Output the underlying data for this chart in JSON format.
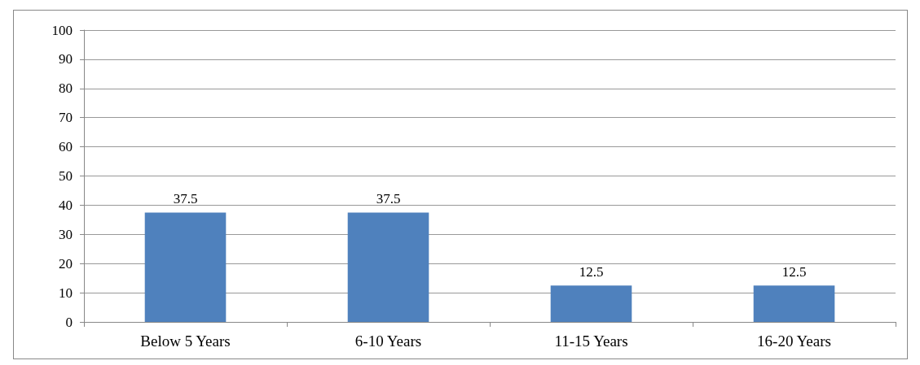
{
  "chart_data": {
    "type": "bar",
    "categories": [
      "Below 5 Years",
      "6-10 Years",
      "11-15 Years",
      "16-20 Years"
    ],
    "values": [
      37.5,
      37.5,
      12.5,
      12.5
    ],
    "color": "#4f81bd",
    "ylim": [
      0,
      100
    ],
    "yticks": [
      0,
      10,
      20,
      30,
      40,
      50,
      60,
      70,
      80,
      90,
      100
    ],
    "grid": "y",
    "data_labels": true
  }
}
